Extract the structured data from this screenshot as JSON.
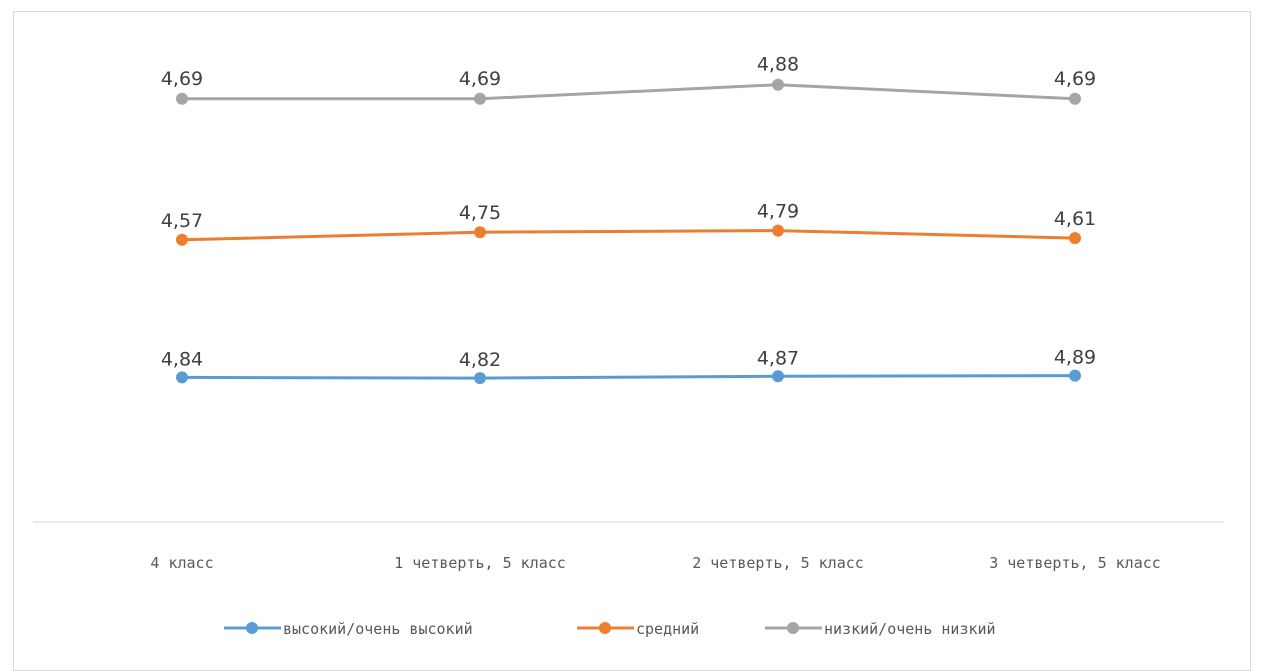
{
  "chart_data": {
    "type": "line",
    "categories": [
      "4 класс",
      "1 четверть, 5 класс",
      "2 четверть, 5 класс",
      "3 четверть, 5 класс"
    ],
    "series": [
      {
        "name": "высокий/очень высокий",
        "values": [
          4.84,
          4.82,
          4.87,
          4.89
        ],
        "labels": [
          "4,84",
          "4,82",
          "4,87",
          "4,89"
        ],
        "color": "#5B9BD5"
      },
      {
        "name": "средний",
        "values": [
          4.57,
          4.75,
          4.79,
          4.61
        ],
        "labels": [
          "4,57",
          "4,75",
          "4,79",
          "4,61"
        ],
        "color": "#ED7D31"
      },
      {
        "name": "низкий/очень низкий",
        "values": [
          4.69,
          4.69,
          4.88,
          4.69
        ],
        "labels": [
          "4,69",
          "4,69",
          "4,88",
          "4,69"
        ],
        "color": "#A5A5A5"
      }
    ],
    "title": "",
    "xlabel": "",
    "ylabel": "",
    "grid": false,
    "legend_position": "bottom",
    "data_labels": true
  }
}
